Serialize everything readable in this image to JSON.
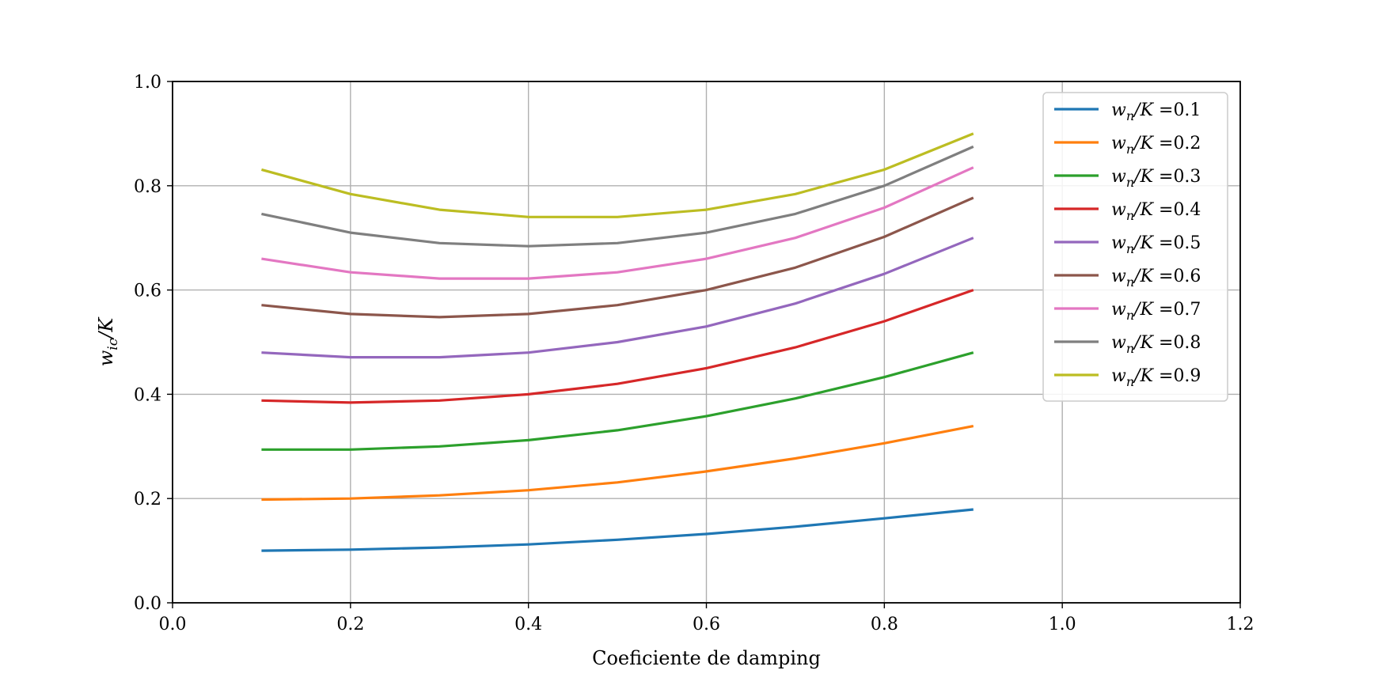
{
  "chart_data": {
    "type": "line",
    "xlabel": "Coeficiente de damping",
    "ylabel_main": "w",
    "ylabel_sub": "ic",
    "ylabel_tail": "/K",
    "xlim": [
      0.0,
      1.2
    ],
    "ylim": [
      0.0,
      1.0
    ],
    "xticks": [
      "0.0",
      "0.2",
      "0.4",
      "0.6",
      "0.8",
      "1.0",
      "1.2"
    ],
    "yticks": [
      "0.0",
      "0.2",
      "0.4",
      "0.6",
      "0.8",
      "1.0"
    ],
    "grid": true,
    "legend_position": "top-right",
    "legend_prefix_main": "w",
    "legend_prefix_sub": "n",
    "legend_prefix_tail": "/K =",
    "x": [
      0.1,
      0.2,
      0.3,
      0.4,
      0.5,
      0.6,
      0.7,
      0.8,
      0.9
    ],
    "series": [
      {
        "name": "0.1",
        "color": "#1f77b4",
        "values": [
          0.1,
          0.102,
          0.106,
          0.112,
          0.121,
          0.132,
          0.146,
          0.162,
          0.179
        ]
      },
      {
        "name": "0.2",
        "color": "#ff7f0e",
        "values": [
          0.198,
          0.2,
          0.206,
          0.216,
          0.231,
          0.252,
          0.277,
          0.306,
          0.339
        ]
      },
      {
        "name": "0.3",
        "color": "#2ca02c",
        "values": [
          0.294,
          0.294,
          0.3,
          0.312,
          0.331,
          0.358,
          0.392,
          0.433,
          0.48
        ]
      },
      {
        "name": "0.4",
        "color": "#d62728",
        "values": [
          0.388,
          0.384,
          0.388,
          0.4,
          0.42,
          0.45,
          0.49,
          0.54,
          0.6
        ]
      },
      {
        "name": "0.5",
        "color": "#9467bd",
        "values": [
          0.48,
          0.471,
          0.471,
          0.48,
          0.5,
          0.53,
          0.574,
          0.631,
          0.7
        ]
      },
      {
        "name": "0.6",
        "color": "#8c564b",
        "values": [
          0.571,
          0.554,
          0.548,
          0.554,
          0.571,
          0.6,
          0.643,
          0.702,
          0.777
        ]
      },
      {
        "name": "0.7",
        "color": "#e377c2",
        "values": [
          0.66,
          0.634,
          0.622,
          0.622,
          0.634,
          0.66,
          0.7,
          0.758,
          0.835
        ]
      },
      {
        "name": "0.8",
        "color": "#7f7f7f",
        "values": [
          0.746,
          0.71,
          0.69,
          0.684,
          0.69,
          0.71,
          0.746,
          0.8,
          0.875
        ]
      },
      {
        "name": "0.9",
        "color": "#bcbd22",
        "values": [
          0.831,
          0.784,
          0.754,
          0.74,
          0.74,
          0.754,
          0.784,
          0.831,
          0.9
        ]
      }
    ]
  }
}
